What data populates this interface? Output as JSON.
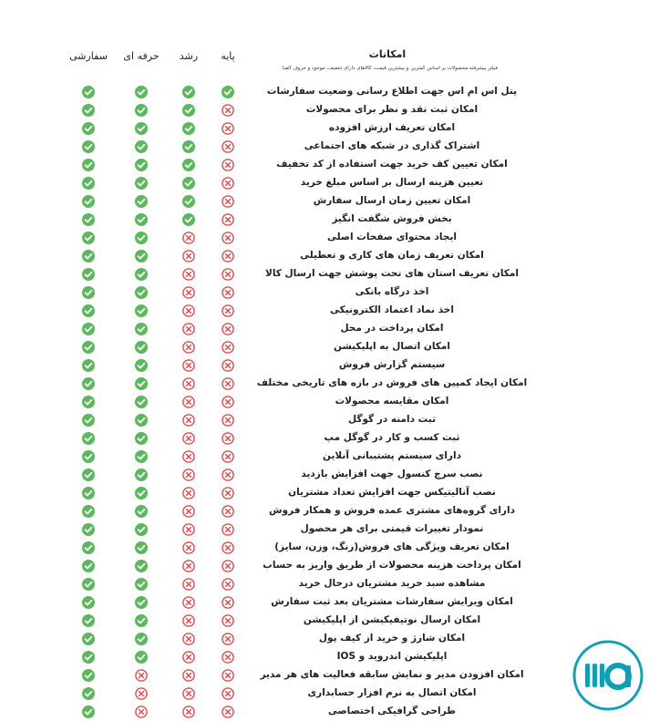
{
  "header": {
    "features_label": "امکانات",
    "subtitle": "فیلتر پیشرفته محصولات بر اساس کمترین و بیشترین قیمت، کالاهای دارای تخفیف، موجود و حروف الفبا",
    "plans": [
      {
        "key": "paye",
        "label": "پایه"
      },
      {
        "key": "roshd",
        "label": "رشد"
      },
      {
        "key": "herfei",
        "label": "حرفه ای"
      },
      {
        "key": "sefareshi",
        "label": "سفارشی"
      }
    ]
  },
  "colors": {
    "check": "#5cb85c",
    "cross": "#e04848",
    "logo": "#0fa0b5"
  },
  "icons": {
    "available": "check-circle-icon",
    "unavailable": "x-circle-icon"
  },
  "features": [
    {
      "label": "پنل اس ام اس جهت اطلاع رسانی وضعیت سفارشات",
      "paye": true,
      "roshd": true,
      "herfei": true,
      "sefareshi": true
    },
    {
      "label": "امکان ثبت نقد و نظر برای محصولات",
      "paye": false,
      "roshd": true,
      "herfei": true,
      "sefareshi": true
    },
    {
      "label": "امکان تعریف ارزش افزوده",
      "paye": false,
      "roshd": true,
      "herfei": true,
      "sefareshi": true
    },
    {
      "label": "اشتراک گذاری در شبکه های اجتماعی",
      "paye": false,
      "roshd": true,
      "herfei": true,
      "sefareshi": true
    },
    {
      "label": "امکان تعیین کف خرید جهت استفاده از کد تخفیف",
      "paye": false,
      "roshd": true,
      "herfei": true,
      "sefareshi": true
    },
    {
      "label": "تعیین هزینه ارسال بر اساس مبلغ خرید",
      "paye": false,
      "roshd": true,
      "herfei": true,
      "sefareshi": true
    },
    {
      "label": "امکان تعیین زمان ارسال سفارش",
      "paye": false,
      "roshd": true,
      "herfei": true,
      "sefareshi": true
    },
    {
      "label": "بخش فروش شگفت انگیز",
      "paye": false,
      "roshd": true,
      "herfei": true,
      "sefareshi": true
    },
    {
      "label": "ایجاد محتوای صفحات اصلی",
      "paye": false,
      "roshd": false,
      "herfei": true,
      "sefareshi": true
    },
    {
      "label": "امکان تعریف زمان های کاری و تعطیلی",
      "paye": false,
      "roshd": false,
      "herfei": true,
      "sefareshi": true
    },
    {
      "label": "امکان تعریف استان های تحت پوشش جهت ارسال کالا",
      "paye": false,
      "roshd": false,
      "herfei": true,
      "sefareshi": true
    },
    {
      "label": "اخذ درگاه بانکی",
      "paye": false,
      "roshd": false,
      "herfei": true,
      "sefareshi": true
    },
    {
      "label": "اخذ نماد اعتماد الکترونیکی",
      "paye": false,
      "roshd": false,
      "herfei": true,
      "sefareshi": true
    },
    {
      "label": "امکان پرداخت در محل",
      "paye": false,
      "roshd": false,
      "herfei": true,
      "sefareshi": true
    },
    {
      "label": "امکان اتصال به اپلیکیشن",
      "paye": false,
      "roshd": false,
      "herfei": true,
      "sefareshi": true
    },
    {
      "label": "سیستم گزارش فروش",
      "paye": false,
      "roshd": false,
      "herfei": true,
      "sefareshi": true
    },
    {
      "label": "امکان ایجاد کمپین های فروش در بازه های تاریخی مختلف",
      "paye": false,
      "roshd": false,
      "herfei": true,
      "sefareshi": true
    },
    {
      "label": "امکان مقایسه محصولات",
      "paye": false,
      "roshd": false,
      "herfei": true,
      "sefareshi": true
    },
    {
      "label": "ثبت دامنه در گوگل",
      "paye": false,
      "roshd": false,
      "herfei": true,
      "sefareshi": true
    },
    {
      "label": "ثبت کسب و کار در گوگل مپ",
      "paye": false,
      "roshd": false,
      "herfei": true,
      "sefareshi": true
    },
    {
      "label": "دارای سیستم پشتیبانی آنلاین",
      "paye": false,
      "roshd": false,
      "herfei": true,
      "sefareshi": true
    },
    {
      "label": "نصب سرچ کنسول جهت افزایش بازدید",
      "paye": false,
      "roshd": false,
      "herfei": true,
      "sefareshi": true
    },
    {
      "label": "نصب آنالیتیکس جهت افزایش تعداد مشتریان",
      "paye": false,
      "roshd": false,
      "herfei": true,
      "sefareshi": true
    },
    {
      "label": "دارای گروه‌های مشتری عمده فروش و همکار فروش",
      "paye": false,
      "roshd": false,
      "herfei": true,
      "sefareshi": true
    },
    {
      "label": "نمودار تغییرات قیمتی برای هر محصول",
      "paye": false,
      "roshd": false,
      "herfei": true,
      "sefareshi": true
    },
    {
      "label": "امکان تعریف ویژگی های فروش(رنگ، وزن، سایز)",
      "paye": false,
      "roshd": false,
      "herfei": true,
      "sefareshi": true
    },
    {
      "label": "امکان پرداخت هزینه محصولات از طریق واریز به حساب",
      "paye": false,
      "roshd": false,
      "herfei": true,
      "sefareshi": true
    },
    {
      "label": "مشاهده سبد خرید مشتریان درحال خرید",
      "paye": false,
      "roshd": false,
      "herfei": true,
      "sefareshi": true
    },
    {
      "label": "امکان ویرایش سفارشات مشتریان بعد ثبت سفارش",
      "paye": false,
      "roshd": false,
      "herfei": true,
      "sefareshi": true
    },
    {
      "label": "امکان ارسال نوتیفیکیشن از اپلیکیشن",
      "paye": false,
      "roshd": false,
      "herfei": true,
      "sefareshi": true
    },
    {
      "label": "امکان شارژ و خرید از کیف پول",
      "paye": false,
      "roshd": false,
      "herfei": true,
      "sefareshi": true
    },
    {
      "label": "اپلیکیشن اندروید و IOS",
      "paye": false,
      "roshd": false,
      "herfei": true,
      "sefareshi": true
    },
    {
      "label": "امکان افزودن مدیر و نمایش سابقه فعالیت های هر مدیر",
      "paye": false,
      "roshd": false,
      "herfei": false,
      "sefareshi": true
    },
    {
      "label": "امکان اتصال به نرم افزار حسابداری",
      "paye": false,
      "roshd": false,
      "herfei": false,
      "sefareshi": true
    },
    {
      "label": "طراحی گرافیکی اختصاصی",
      "paye": false,
      "roshd": false,
      "herfei": false,
      "sefareshi": true
    }
  ]
}
